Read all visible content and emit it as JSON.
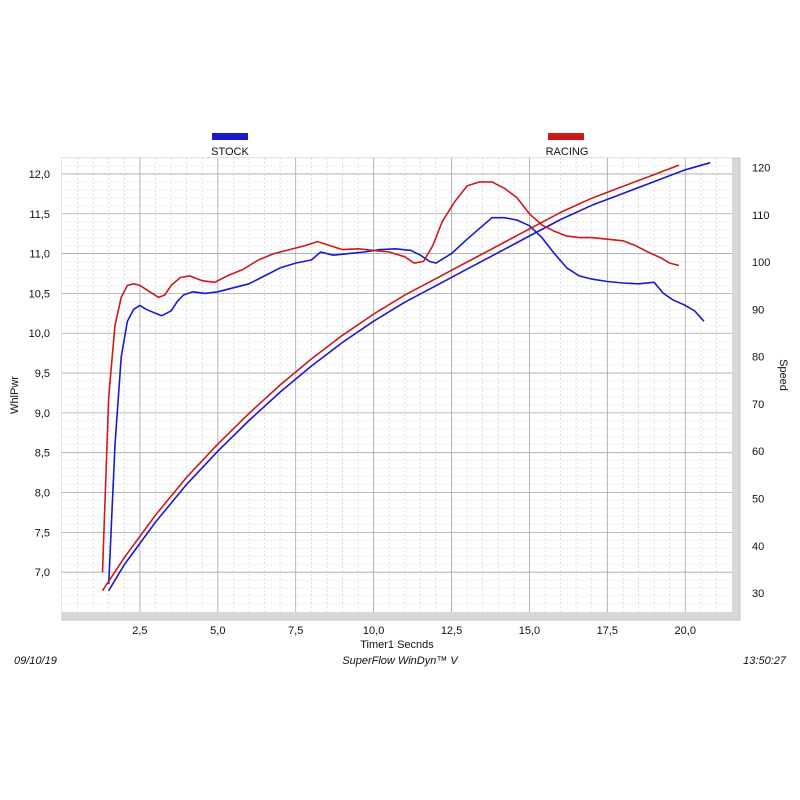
{
  "chart_data": {
    "type": "line",
    "xlabel": "Timer1 Secnds",
    "ylabel_left": "WhlPwr",
    "ylabel_right": "Speed",
    "xlim": [
      0,
      21.5
    ],
    "ylim_left": [
      6.5,
      12.2
    ],
    "ylim_right": [
      26,
      122
    ],
    "x_ticks": [
      "2,5",
      "5,0",
      "7,5",
      "10,0",
      "12,5",
      "15,0",
      "17,5",
      "20,0"
    ],
    "x_tick_values": [
      2.5,
      5.0,
      7.5,
      10.0,
      12.5,
      15.0,
      17.5,
      20.0
    ],
    "y_left_ticks": [
      "7,0",
      "7,5",
      "8,0",
      "8,5",
      "9,0",
      "9,5",
      "10,0",
      "10,5",
      "11,0",
      "11,5",
      "12,0"
    ],
    "y_left_tick_values": [
      7.0,
      7.5,
      8.0,
      8.5,
      9.0,
      9.5,
      10.0,
      10.5,
      11.0,
      11.5,
      12.0
    ],
    "y_right_ticks": [
      "30",
      "40",
      "50",
      "60",
      "70",
      "80",
      "90",
      "100",
      "110",
      "120"
    ],
    "y_right_tick_values": [
      30,
      40,
      50,
      60,
      70,
      80,
      90,
      100,
      110,
      120
    ],
    "grid": true,
    "legend_placement": "top",
    "series": [
      {
        "name": "STOCK",
        "color": "#1a1acc",
        "power": {
          "x": [
            1.5,
            1.7,
            1.9,
            2.1,
            2.3,
            2.5,
            2.7,
            3.0,
            3.2,
            3.5,
            3.7,
            3.9,
            4.2,
            4.6,
            5.0,
            5.5,
            6.0,
            6.5,
            7.0,
            7.5,
            8.0,
            8.3,
            8.7,
            9.2,
            9.7,
            10.2,
            10.7,
            11.2,
            11.5,
            11.8,
            12.0,
            12.5,
            13.0,
            13.5,
            13.8,
            14.2,
            14.6,
            15.0,
            15.4,
            15.8,
            16.2,
            16.6,
            17.0,
            17.5,
            18.0,
            18.5,
            19.0,
            19.3,
            19.6,
            20.0,
            20.3,
            20.6
          ],
          "y": [
            6.85,
            8.6,
            9.7,
            10.15,
            10.3,
            10.35,
            10.3,
            10.25,
            10.22,
            10.28,
            10.4,
            10.48,
            10.52,
            10.5,
            10.52,
            10.57,
            10.62,
            10.72,
            10.82,
            10.88,
            10.92,
            11.02,
            10.98,
            11.0,
            11.02,
            11.05,
            11.06,
            11.04,
            10.98,
            10.9,
            10.88,
            11.0,
            11.18,
            11.35,
            11.45,
            11.45,
            11.42,
            11.35,
            11.2,
            11.0,
            10.82,
            10.72,
            10.68,
            10.65,
            10.63,
            10.62,
            10.64,
            10.5,
            10.42,
            10.35,
            10.28,
            10.15
          ]
        },
        "speed": {
          "x": [
            1.5,
            2.0,
            3.0,
            4.0,
            5.0,
            6.0,
            7.0,
            8.0,
            9.0,
            10.0,
            11.0,
            12.0,
            13.0,
            14.0,
            15.0,
            16.0,
            17.0,
            18.0,
            19.0,
            20.0,
            20.8
          ],
          "y": [
            30.5,
            36,
            45,
            53,
            60,
            66.5,
            72.5,
            78,
            83,
            87.5,
            91.5,
            95,
            98.5,
            102,
            105.5,
            109,
            112,
            114.5,
            117,
            119.5,
            121
          ]
        }
      },
      {
        "name": "RACING",
        "color": "#cc1a1a",
        "power": {
          "x": [
            1.3,
            1.5,
            1.7,
            1.9,
            2.1,
            2.3,
            2.5,
            2.7,
            2.9,
            3.1,
            3.3,
            3.5,
            3.8,
            4.1,
            4.5,
            4.9,
            5.3,
            5.8,
            6.3,
            6.8,
            7.3,
            7.8,
            8.2,
            8.6,
            9.0,
            9.5,
            10.0,
            10.5,
            11.0,
            11.3,
            11.6,
            11.9,
            12.2,
            12.6,
            13.0,
            13.4,
            13.8,
            14.2,
            14.6,
            15.0,
            15.4,
            15.8,
            16.2,
            16.6,
            17.0,
            17.5,
            18.0,
            18.4,
            18.8,
            19.2,
            19.5,
            19.8
          ],
          "y": [
            7.0,
            9.2,
            10.1,
            10.45,
            10.6,
            10.62,
            10.6,
            10.55,
            10.5,
            10.45,
            10.48,
            10.6,
            10.7,
            10.72,
            10.66,
            10.64,
            10.72,
            10.8,
            10.92,
            11.0,
            11.05,
            11.1,
            11.15,
            11.1,
            11.05,
            11.06,
            11.04,
            11.02,
            10.96,
            10.88,
            10.9,
            11.1,
            11.4,
            11.65,
            11.85,
            11.9,
            11.9,
            11.82,
            11.7,
            11.5,
            11.36,
            11.28,
            11.22,
            11.2,
            11.2,
            11.18,
            11.16,
            11.1,
            11.02,
            10.95,
            10.88,
            10.85
          ]
        },
        "speed": {
          "x": [
            1.3,
            2.0,
            3.0,
            4.0,
            5.0,
            6.0,
            7.0,
            8.0,
            9.0,
            10.0,
            11.0,
            12.0,
            13.0,
            14.0,
            15.0,
            16.0,
            17.0,
            18.0,
            19.0,
            19.8
          ],
          "y": [
            30.5,
            37.5,
            46.5,
            54.5,
            61.5,
            68,
            74,
            79.5,
            84.5,
            89,
            93,
            96.5,
            100,
            103.5,
            107,
            110.5,
            113.5,
            116,
            118.5,
            120.5
          ]
        }
      }
    ]
  },
  "footer": {
    "date": "09/10/19",
    "software": "SuperFlow WinDyn™ V",
    "time": "13:50:27"
  }
}
